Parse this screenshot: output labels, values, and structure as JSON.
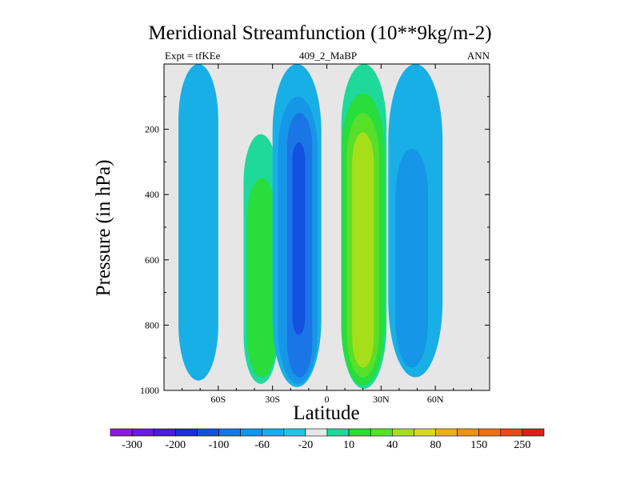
{
  "chart_data": {
    "type": "filled-contour",
    "title": "Meridional Streamfunction (10**9kg/m-2)",
    "subtitle_left": "Expt = tfKEe",
    "subtitle_center": "409_2_MaBP",
    "subtitle_right": "ANN",
    "xlabel": "Latitude",
    "ylabel": "Pressure (in hPa)",
    "x_ticks": [
      "60S",
      "30S",
      "0",
      "30N",
      "60N"
    ],
    "x_tick_values": [
      -60,
      -30,
      0,
      30,
      60
    ],
    "xlim": [
      -90,
      90
    ],
    "y_ticks": [
      "200",
      "400",
      "600",
      "800",
      "1000"
    ],
    "y_tick_values": [
      200,
      400,
      600,
      800,
      1000
    ],
    "ylim": [
      1000,
      0
    ],
    "y_inverted": true,
    "background_color": "#e6e6e6",
    "colorbar": {
      "labels": [
        "-300",
        "-200",
        "-100",
        "-60",
        "-20",
        "10",
        "40",
        "80",
        "150",
        "250"
      ],
      "colors": [
        "#8b19e6",
        "#6a19e6",
        "#4a1ae6",
        "#1c2be6",
        "#1450e0",
        "#1a75e6",
        "#1696e6",
        "#18afe6",
        "#1fc6e1",
        "#e6e6e6",
        "#1fd99a",
        "#28dd3c",
        "#58df2a",
        "#a6df1a",
        "#d9d91a",
        "#e6b41a",
        "#e6941a",
        "#e6721a",
        "#e64a1a",
        "#e61a1a"
      ]
    },
    "regions": [
      {
        "lat": [
          -82,
          -60
        ],
        "p": [
          0,
          970
        ],
        "level": "-20",
        "color": "#18afe6",
        "sign": "negative"
      },
      {
        "lat": [
          -46,
          -27
        ],
        "p": [
          215,
          980
        ],
        "level": "10",
        "color": "#1fd99a",
        "sign": "positive"
      },
      {
        "lat": [
          -44,
          -28
        ],
        "p": [
          350,
          960
        ],
        "level": "40",
        "color": "#28dd3c",
        "sign": "positive"
      },
      {
        "lat": [
          -30,
          -3
        ],
        "p": [
          0,
          990
        ],
        "level": "-20",
        "color": "#18afe6",
        "sign": "negative"
      },
      {
        "lat": [
          -27,
          -5
        ],
        "p": [
          100,
          980
        ],
        "level": "-60",
        "color": "#1696e6",
        "sign": "negative"
      },
      {
        "lat": [
          -22,
          -8
        ],
        "p": [
          150,
          960
        ],
        "level": "-60",
        "color": "#1a75e6",
        "sign": "negative"
      },
      {
        "lat": [
          -19,
          -12
        ],
        "p": [
          240,
          830
        ],
        "level": "-100",
        "color": "#1450e0",
        "sign": "negative"
      },
      {
        "lat": [
          8,
          33
        ],
        "p": [
          0,
          995
        ],
        "level": "10",
        "color": "#1fd99a",
        "sign": "positive"
      },
      {
        "lat": [
          8,
          32
        ],
        "p": [
          90,
          985
        ],
        "level": "40",
        "color": "#28dd3c",
        "sign": "positive"
      },
      {
        "lat": [
          11,
          29
        ],
        "p": [
          150,
          960
        ],
        "level": "80",
        "color": "#58df2a",
        "sign": "positive"
      },
      {
        "lat": [
          14,
          26
        ],
        "p": [
          210,
          930
        ],
        "level": "80",
        "color": "#a6df1a",
        "sign": "positive"
      },
      {
        "lat": [
          34,
          64
        ],
        "p": [
          0,
          960
        ],
        "level": "-20",
        "color": "#18afe6",
        "sign": "negative"
      },
      {
        "lat": [
          38,
          56
        ],
        "p": [
          260,
          930
        ],
        "level": "-60",
        "color": "#1696e6",
        "sign": "negative"
      }
    ]
  }
}
